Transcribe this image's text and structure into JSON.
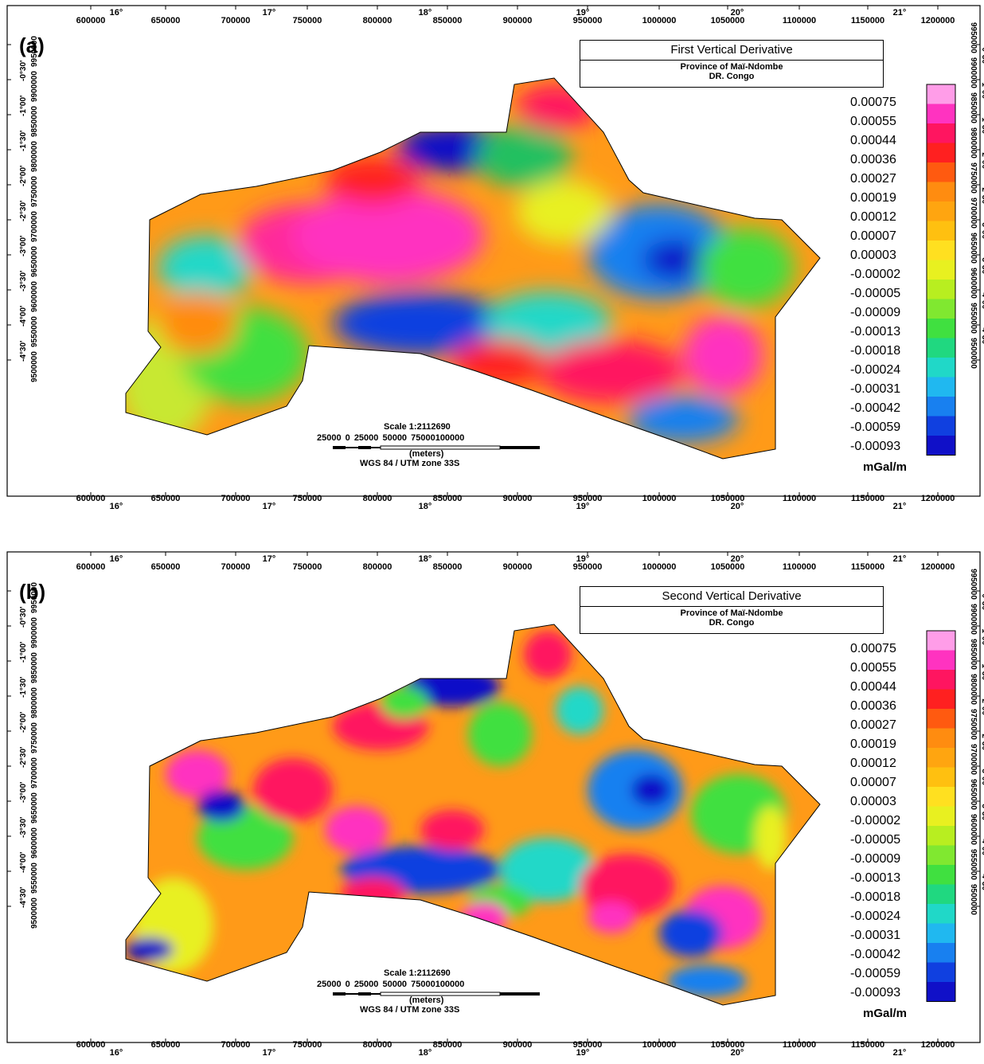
{
  "x_ticks": [
    "600000",
    "650000",
    "700000",
    "750000",
    "800000",
    "850000",
    "900000",
    "950000",
    "1000000",
    "1050000",
    "1100000",
    "1150000",
    "1200000"
  ],
  "lon_ticks": [
    "16°",
    "17°",
    "18°",
    "19°",
    "20°",
    "21°"
  ],
  "y_ticks": [
    "9950000",
    "9900000",
    "9850000",
    "9800000",
    "9750000",
    "9700000",
    "9650000",
    "9600000",
    "9550000",
    "9500000"
  ],
  "lat_ticks": [
    "-0°30'",
    "-1°00'",
    "-1°30'",
    "-2°00'",
    "-2°30'",
    "-3°00'",
    "-3°30'",
    "-4°00'",
    "-4°30'"
  ],
  "legend": {
    "values": [
      "0.00075",
      "0.00055",
      "0.00044",
      "0.00036",
      "0.00027",
      "0.00019",
      "0.00012",
      "0.00007",
      "0.00003",
      "-0.00002",
      "-0.00005",
      "-0.00009",
      "-0.00013",
      "-0.00018",
      "-0.00024",
      "-0.00031",
      "-0.00042",
      "-0.00059",
      "-0.00093"
    ],
    "unit": "mGal/m",
    "colors": [
      "#ff9de8",
      "#ff33c0",
      "#ff1560",
      "#ff2020",
      "#ff5a10",
      "#ff8c10",
      "#ffa510",
      "#ffc010",
      "#ffe020",
      "#e8f020",
      "#b8ee20",
      "#80e830",
      "#40e040",
      "#20d880",
      "#20d8c8",
      "#20b8f0",
      "#1880f0",
      "#1040e0",
      "#1010c8"
    ]
  },
  "scale": {
    "title": "Scale 1:2112690",
    "numbers": "25000    0    25000 50000 75000100000",
    "unit": "(meters)",
    "projection": "WGS 84 / UTM zone 33S"
  },
  "title_sub1": "Province of Maï-Ndombe",
  "title_sub2": "DR. Congo",
  "panels": [
    {
      "letter": "(a)",
      "title": "First Vertical Derivative"
    },
    {
      "letter": "(b)",
      "title": "Second Vertical Derivative"
    }
  ]
}
